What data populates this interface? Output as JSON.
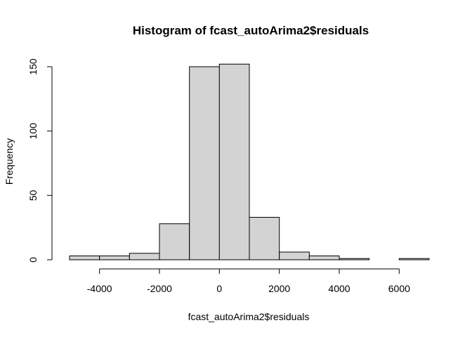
{
  "chart_data": {
    "type": "bar",
    "title": "Histogram of fcast_autoArima2$residuals",
    "xlabel": "fcast_autoArima2$residuals",
    "ylabel": "Frequency",
    "bins": [
      {
        "start": -5000,
        "end": -4000,
        "count": 3
      },
      {
        "start": -4000,
        "end": -3000,
        "count": 3
      },
      {
        "start": -3000,
        "end": -2000,
        "count": 5
      },
      {
        "start": -2000,
        "end": -1000,
        "count": 28
      },
      {
        "start": -1000,
        "end": 0,
        "count": 150
      },
      {
        "start": 0,
        "end": 1000,
        "count": 152
      },
      {
        "start": 1000,
        "end": 2000,
        "count": 33
      },
      {
        "start": 2000,
        "end": 3000,
        "count": 6
      },
      {
        "start": 3000,
        "end": 4000,
        "count": 3
      },
      {
        "start": 4000,
        "end": 5000,
        "count": 1
      },
      {
        "start": 5000,
        "end": 6000,
        "count": 0
      },
      {
        "start": 6000,
        "end": 7000,
        "count": 1
      }
    ],
    "xlim": [
      -5000,
      7000
    ],
    "ylim": [
      0,
      152
    ],
    "x_ticks": [
      -4000,
      -2000,
      0,
      2000,
      4000,
      6000
    ],
    "x_tick_labels": [
      "-4000",
      "-2000",
      "0",
      "2000",
      "4000",
      "6000"
    ],
    "y_ticks": [
      0,
      50,
      100,
      150
    ],
    "y_tick_labels": [
      "0",
      "50",
      "100",
      "150"
    ],
    "bar_color": "#d3d3d3",
    "grid": false,
    "legend": "none"
  }
}
